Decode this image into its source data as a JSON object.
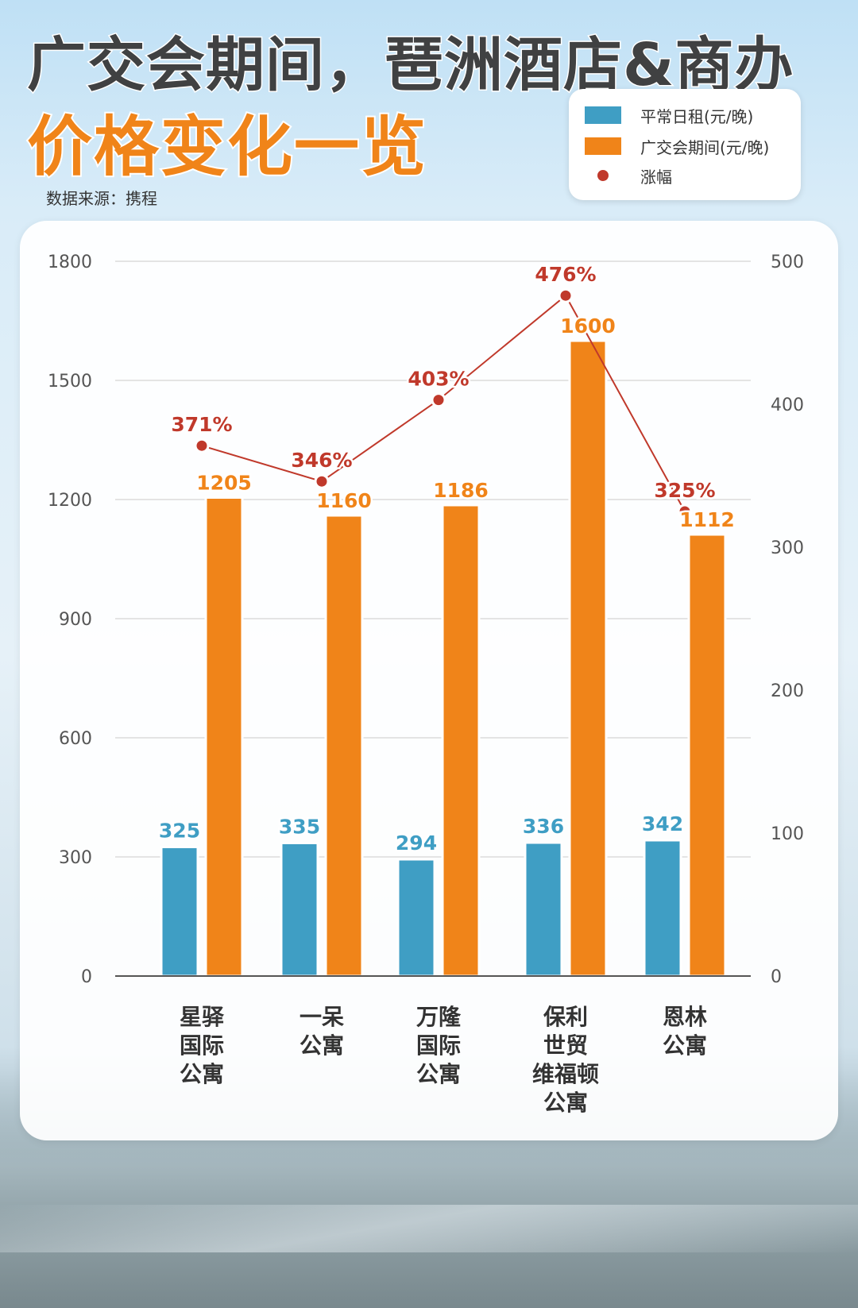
{
  "title": {
    "line1": "广交会期间，琶洲酒店&商办",
    "line2": "价格变化一览"
  },
  "source": "数据来源：携程",
  "legend": {
    "normal": "平常日租(元/晚)",
    "fair": "广交会期间(元/晚)",
    "rise": "涨幅"
  },
  "colors": {
    "normal": "#3f9ec4",
    "fair": "#f08419",
    "rise": "#c0392b",
    "normal_label": "#3f9ec4",
    "fair_label": "#f08419",
    "rise_label": "#c0392b"
  },
  "chart_data": {
    "type": "bar",
    "categories": [
      "星驿\n国际\n公寓",
      "一呆\n公寓",
      "万隆\n国际\n公寓",
      "保利\n世贸\n维福顿\n公寓",
      "恩林\n公寓"
    ],
    "series": [
      {
        "name": "平常日租(元/晚)",
        "type": "bar",
        "axis": "left",
        "values": [
          325,
          335,
          294,
          336,
          342
        ]
      },
      {
        "name": "广交会期间(元/晚)",
        "type": "bar",
        "axis": "left",
        "values": [
          1205,
          1160,
          1186,
          1600,
          1112
        ]
      },
      {
        "name": "涨幅",
        "type": "line",
        "axis": "right",
        "values": [
          371,
          346,
          403,
          476,
          325
        ],
        "labels": [
          "371%",
          "346%",
          "403%",
          "476%",
          "325%"
        ]
      }
    ],
    "y_left": {
      "min": 0,
      "max": 1800,
      "ticks": [
        0,
        300,
        600,
        900,
        1200,
        1500,
        1800
      ]
    },
    "y_right": {
      "min": 0,
      "max": 500,
      "ticks": [
        0,
        100,
        200,
        300,
        400,
        500
      ]
    },
    "grid": true,
    "legend_position": "top-right"
  }
}
